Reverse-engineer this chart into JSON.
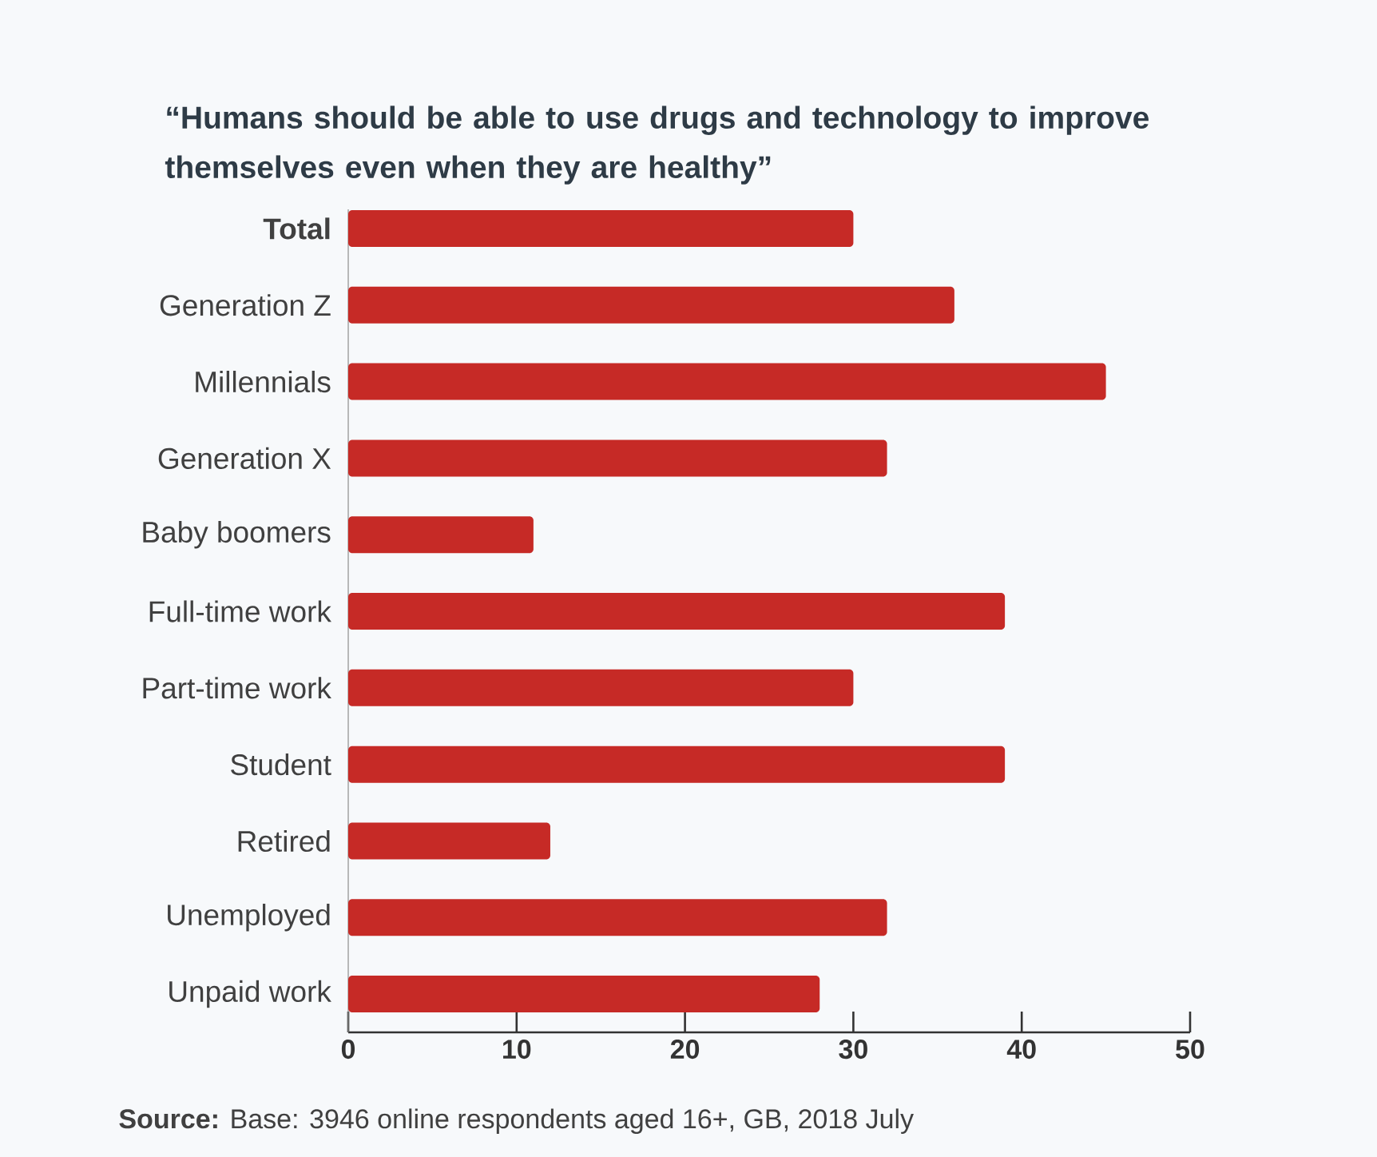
{
  "chart_data": {
    "type": "bar",
    "orientation": "horizontal",
    "title": "“Humans should be able to use drugs and technology to improve themselves even when they are healthy”",
    "categories": [
      "**Total**",
      "Generation Z",
      "Millennials",
      "Generation X",
      "Baby boomers",
      "Full-time work",
      "Part-time work",
      "Student",
      "Retired",
      "Unemployed",
      "Unpaid work"
    ],
    "values": [
      30,
      36,
      45,
      32,
      11,
      39,
      30,
      39,
      12,
      32,
      28
    ],
    "color": "#c62a26",
    "xlim": [
      0,
      50
    ],
    "xticks": [
      0,
      10,
      20,
      30,
      40,
      50
    ],
    "annotations": [
      "**Source:** Base: 3946 online respondents aged 16+, GB, 2018 July"
    ]
  }
}
